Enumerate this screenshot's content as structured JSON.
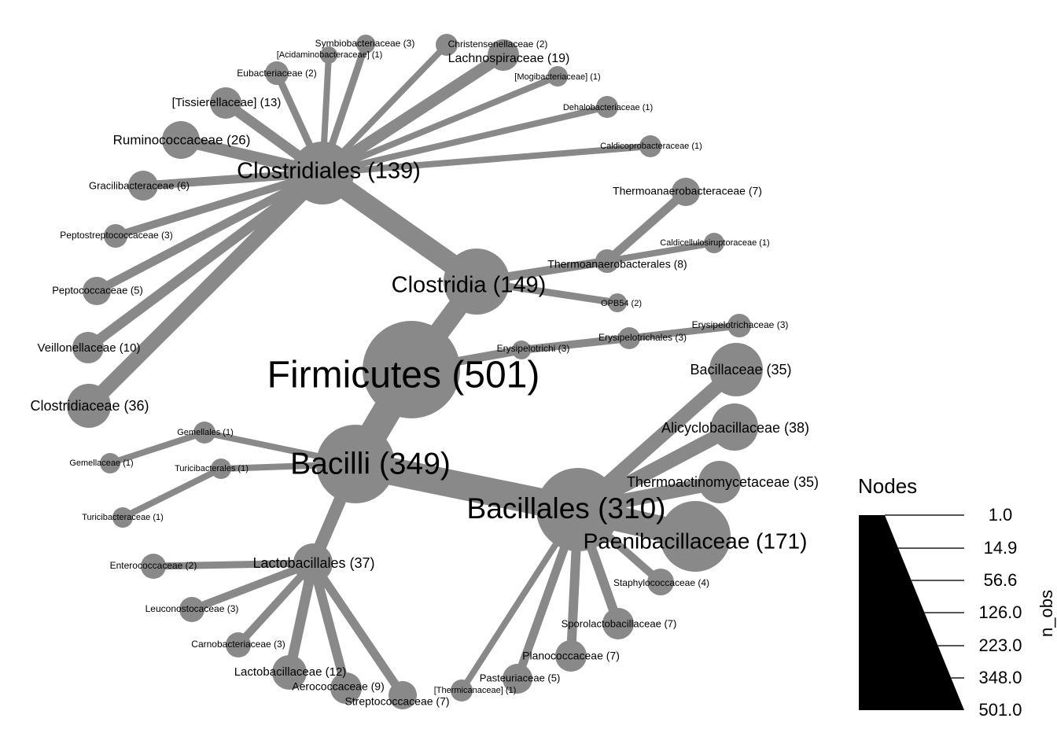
{
  "legend": {
    "title": "Nodes",
    "axis_label": "n_obs",
    "ticks": [
      "1.0",
      "14.9",
      "56.6",
      "126.0",
      "223.0",
      "348.0",
      "501.0"
    ]
  },
  "tree": {
    "nodes": [
      {
        "id": "firmicutes",
        "label": "Firmicutes (501)",
        "n": 501,
        "parent": null
      },
      {
        "id": "clostridia",
        "label": "Clostridia (149)",
        "n": 149,
        "parent": "firmicutes"
      },
      {
        "id": "bacilli",
        "label": "Bacilli (349)",
        "n": 349,
        "parent": "firmicutes"
      },
      {
        "id": "erysipelotrichi",
        "label": "Erysipelotrichi (3)",
        "n": 3,
        "parent": "firmicutes"
      },
      {
        "id": "clostridiales",
        "label": "Clostridiales (139)",
        "n": 139,
        "parent": "clostridia"
      },
      {
        "id": "thermoanaerobacterales",
        "label": "Thermoanaerobacterales (8)",
        "n": 8,
        "parent": "clostridia"
      },
      {
        "id": "opb54",
        "label": "OPB54 (2)",
        "n": 2,
        "parent": "clostridia"
      },
      {
        "id": "thermoanaerobacteraceae",
        "label": "Thermoanaerobacteraceae (7)",
        "n": 7,
        "parent": "thermoanaerobacterales"
      },
      {
        "id": "caldicellulosiruptoraceae",
        "label": "Caldicellulosiruptoraceae (1)",
        "n": 1,
        "parent": "thermoanaerobacterales"
      },
      {
        "id": "erysipelotrichales",
        "label": "Erysipelotrichales (3)",
        "n": 3,
        "parent": "erysipelotrichi"
      },
      {
        "id": "erysipelotrichaceae",
        "label": "Erysipelotrichaceae (3)",
        "n": 3,
        "parent": "erysipelotrichales"
      },
      {
        "id": "symbiobacteriaceae",
        "label": "Symbiobacteriaceae (3)",
        "n": 3,
        "parent": "clostridiales"
      },
      {
        "id": "acidaminobacteraceae",
        "label": "[Acidaminobacteraceae] (1)",
        "n": 1,
        "parent": "clostridiales"
      },
      {
        "id": "christensenellaceae",
        "label": "Christensenellaceae (2)",
        "n": 2,
        "parent": "clostridiales"
      },
      {
        "id": "lachnospiraceae",
        "label": "Lachnospiraceae (19)",
        "n": 19,
        "parent": "clostridiales"
      },
      {
        "id": "eubacteriaceae",
        "label": "Eubacteriaceae (2)",
        "n": 2,
        "parent": "clostridiales"
      },
      {
        "id": "mogibacteriaceae",
        "label": "[Mogibacteriaceae] (1)",
        "n": 1,
        "parent": "clostridiales"
      },
      {
        "id": "tissierellaceae",
        "label": "[Tissierellaceae] (13)",
        "n": 13,
        "parent": "clostridiales"
      },
      {
        "id": "dehalobacteriaceae",
        "label": "Dehalobacteriaceae (1)",
        "n": 1,
        "parent": "clostridiales"
      },
      {
        "id": "ruminococcaceae",
        "label": "Ruminococcaceae (26)",
        "n": 26,
        "parent": "clostridiales"
      },
      {
        "id": "caldicoprobacteraceae",
        "label": "Caldicoprobacteraceae (1)",
        "n": 1,
        "parent": "clostridiales"
      },
      {
        "id": "gracilibacteraceae",
        "label": "Gracilibacteraceae (6)",
        "n": 6,
        "parent": "clostridiales"
      },
      {
        "id": "peptostreptococcaceae",
        "label": "Peptostreptococcaceae (3)",
        "n": 3,
        "parent": "clostridiales"
      },
      {
        "id": "peptococcaceae",
        "label": "Peptococcaceae (5)",
        "n": 5,
        "parent": "clostridiales"
      },
      {
        "id": "veillonellaceae",
        "label": "Veillonellaceae (10)",
        "n": 10,
        "parent": "clostridiales"
      },
      {
        "id": "clostridiaceae",
        "label": "Clostridiaceae (36)",
        "n": 36,
        "parent": "clostridiales"
      },
      {
        "id": "gemellales",
        "label": "Gemellales (1)",
        "n": 1,
        "parent": "bacilli"
      },
      {
        "id": "gemellaceae",
        "label": "Gemellaceae (1)",
        "n": 1,
        "parent": "gemellales"
      },
      {
        "id": "turicibacterales",
        "label": "Turicibacterales (1)",
        "n": 1,
        "parent": "bacilli"
      },
      {
        "id": "turicibacteraceae",
        "label": "Turicibacteraceae (1)",
        "n": 1,
        "parent": "turicibacterales"
      },
      {
        "id": "lactobacillales",
        "label": "Lactobacillales (37)",
        "n": 37,
        "parent": "bacilli"
      },
      {
        "id": "bacillales",
        "label": "Bacillales (310)",
        "n": 310,
        "parent": "bacilli"
      },
      {
        "id": "enterococcaceae",
        "label": "Enterococcaceae (2)",
        "n": 2,
        "parent": "lactobacillales"
      },
      {
        "id": "leuconostocaceae",
        "label": "Leuconostocaceae (3)",
        "n": 3,
        "parent": "lactobacillales"
      },
      {
        "id": "carnobacteriaceae",
        "label": "Carnobacteriaceae (3)",
        "n": 3,
        "parent": "lactobacillales"
      },
      {
        "id": "lactobacillaceae",
        "label": "Lactobacillaceae (12)",
        "n": 12,
        "parent": "lactobacillales"
      },
      {
        "id": "aerococcaceae",
        "label": "Aerococcaceae (9)",
        "n": 9,
        "parent": "lactobacillales"
      },
      {
        "id": "streptococcaceae",
        "label": "Streptococcaceae (7)",
        "n": 7,
        "parent": "lactobacillales"
      },
      {
        "id": "bacillaceae",
        "label": "Bacillaceae (35)",
        "n": 35,
        "parent": "bacillales"
      },
      {
        "id": "alicyclobacillaceae",
        "label": "Alicyclobacillaceae (38)",
        "n": 38,
        "parent": "bacillales"
      },
      {
        "id": "thermoactinomycetaceae",
        "label": "Thermoactinomycetaceae (35)",
        "n": 35,
        "parent": "bacillales"
      },
      {
        "id": "paenibacillaceae",
        "label": "Paenibacillaceae (171)",
        "n": 171,
        "parent": "bacillales"
      },
      {
        "id": "staphylococcaceae",
        "label": "Staphylococcaceae (4)",
        "n": 4,
        "parent": "bacillales"
      },
      {
        "id": "sporolactobacillaceae",
        "label": "Sporolactobacillaceae (7)",
        "n": 7,
        "parent": "bacillales"
      },
      {
        "id": "planococcaceae",
        "label": "Planococcaceae (7)",
        "n": 7,
        "parent": "bacillales"
      },
      {
        "id": "pasteuriaceae",
        "label": "Pasteuriaceae (5)",
        "n": 5,
        "parent": "bacillales"
      },
      {
        "id": "thermicanaceae",
        "label": "[Thermicanaceae] (1)",
        "n": 1,
        "parent": "bacillales"
      }
    ]
  }
}
